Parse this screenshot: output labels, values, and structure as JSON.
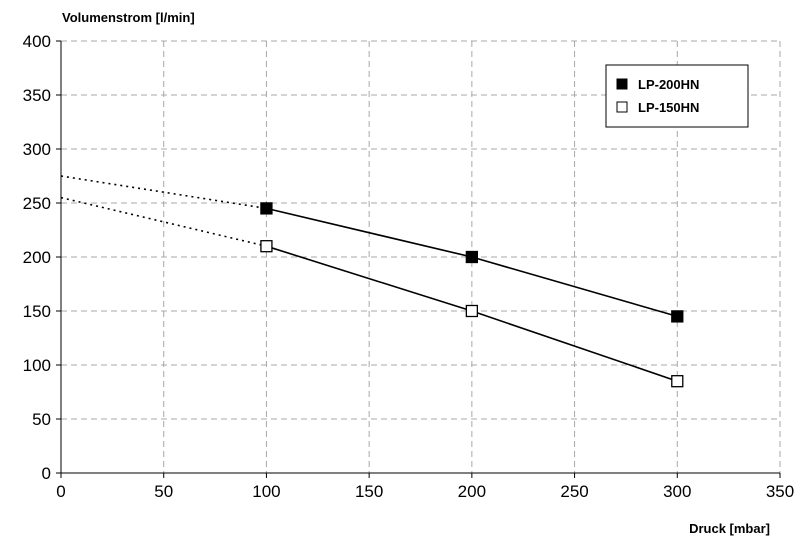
{
  "chart_data": {
    "type": "line",
    "title": "",
    "ylabel": "Volumenstrom [l/min]",
    "xlabel": "Druck [mbar]",
    "xlim": [
      0,
      350
    ],
    "ylim": [
      0,
      400
    ],
    "xticks": [
      0,
      50,
      100,
      150,
      200,
      250,
      300,
      350
    ],
    "yticks": [
      0,
      50,
      100,
      150,
      200,
      250,
      300,
      350,
      400
    ],
    "grid": true,
    "legend_position": "top-right",
    "series": [
      {
        "name": "LP-200HN",
        "marker": "filled-square",
        "color": "#000000",
        "x": [
          100,
          200,
          300
        ],
        "y": [
          245,
          200,
          145
        ],
        "extrapolated": {
          "x": [
            0,
            100
          ],
          "y": [
            275,
            245
          ]
        }
      },
      {
        "name": "LP-150HN",
        "marker": "open-square",
        "color": "#000000",
        "x": [
          100,
          200,
          300
        ],
        "y": [
          210,
          150,
          85
        ],
        "extrapolated": {
          "x": [
            0,
            100
          ],
          "y": [
            255,
            210
          ]
        }
      }
    ]
  }
}
